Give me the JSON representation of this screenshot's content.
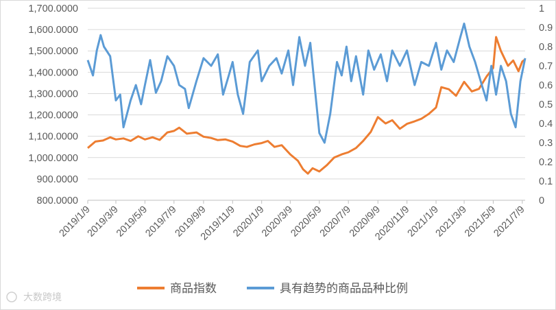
{
  "chart_data": {
    "type": "line",
    "title": "",
    "xlabel": "",
    "y_left": {
      "ticks": [
        "800.0000",
        "900.0000",
        "1,000.0000",
        "1,100.0000",
        "1,200.0000",
        "1,300.0000",
        "1,400.0000",
        "1,500.0000",
        "1,600.0000",
        "1,700.0000"
      ],
      "range": [
        800,
        1700
      ]
    },
    "y_right": {
      "ticks": [
        "0",
        "0.1",
        "0.2",
        "0.3",
        "0.4",
        "0.5",
        "0.6",
        "0.7",
        "0.8",
        "0.9",
        "1"
      ],
      "range": [
        0,
        1
      ]
    },
    "x_tick_labels": [
      "2019/1/9",
      "2019/3/9",
      "2019/5/9",
      "2019/7/9",
      "2019/9/9",
      "2019/11/9",
      "2020/1/9",
      "2020/3/9",
      "2020/5/9",
      "2020/7/9",
      "2020/9/9",
      "2020/11/9",
      "2021/1/9",
      "2021/3/9",
      "2021/5/9",
      "2021/7/9"
    ],
    "x_range": [
      "2019/1/9",
      "2021/7/15"
    ],
    "legend_position": "bottom",
    "series": [
      {
        "name": "商品指数",
        "axis": "left",
        "color": "#ED7D31",
        "points": [
          [
            "2019/1/9",
            1045
          ],
          [
            "2019/1/25",
            1075
          ],
          [
            "2019/2/10",
            1080
          ],
          [
            "2019/2/25",
            1095
          ],
          [
            "2019/3/9",
            1085
          ],
          [
            "2019/3/25",
            1090
          ],
          [
            "2019/4/9",
            1078
          ],
          [
            "2019/4/25",
            1100
          ],
          [
            "2019/5/9",
            1085
          ],
          [
            "2019/5/25",
            1095
          ],
          [
            "2019/6/9",
            1083
          ],
          [
            "2019/6/25",
            1118
          ],
          [
            "2019/7/9",
            1125
          ],
          [
            "2019/7/20",
            1140
          ],
          [
            "2019/8/5",
            1112
          ],
          [
            "2019/8/25",
            1118
          ],
          [
            "2019/9/9",
            1098
          ],
          [
            "2019/9/25",
            1092
          ],
          [
            "2019/10/9",
            1082
          ],
          [
            "2019/10/25",
            1085
          ],
          [
            "2019/11/9",
            1075
          ],
          [
            "2019/11/25",
            1055
          ],
          [
            "2019/12/9",
            1050
          ],
          [
            "2019/12/25",
            1062
          ],
          [
            "2020/1/9",
            1068
          ],
          [
            "2020/1/22",
            1078
          ],
          [
            "2020/2/5",
            1050
          ],
          [
            "2020/2/20",
            1058
          ],
          [
            "2020/3/9",
            1015
          ],
          [
            "2020/3/25",
            985
          ],
          [
            "2020/4/5",
            945
          ],
          [
            "2020/4/15",
            925
          ],
          [
            "2020/4/25",
            950
          ],
          [
            "2020/5/9",
            935
          ],
          [
            "2020/5/25",
            965
          ],
          [
            "2020/6/9",
            1000
          ],
          [
            "2020/6/25",
            1015
          ],
          [
            "2020/7/9",
            1025
          ],
          [
            "2020/7/25",
            1045
          ],
          [
            "2020/8/9",
            1078
          ],
          [
            "2020/8/25",
            1120
          ],
          [
            "2020/9/9",
            1190
          ],
          [
            "2020/9/25",
            1160
          ],
          [
            "2020/10/9",
            1175
          ],
          [
            "2020/10/25",
            1135
          ],
          [
            "2020/11/9",
            1158
          ],
          [
            "2020/11/25",
            1170
          ],
          [
            "2020/12/9",
            1182
          ],
          [
            "2020/12/25",
            1205
          ],
          [
            "2021/1/9",
            1235
          ],
          [
            "2021/1/20",
            1330
          ],
          [
            "2021/2/5",
            1320
          ],
          [
            "2021/2/20",
            1290
          ],
          [
            "2021/3/9",
            1355
          ],
          [
            "2021/3/25",
            1310
          ],
          [
            "2021/4/9",
            1322
          ],
          [
            "2021/4/25",
            1380
          ],
          [
            "2021/5/9",
            1420
          ],
          [
            "2021/5/15",
            1565
          ],
          [
            "2021/5/25",
            1500
          ],
          [
            "2021/6/9",
            1430
          ],
          [
            "2021/6/20",
            1455
          ],
          [
            "2021/7/1",
            1405
          ],
          [
            "2021/7/9",
            1450
          ],
          [
            "2021/7/15",
            1460
          ]
        ]
      },
      {
        "name": "具有趋势的商品品种比例",
        "axis": "right",
        "color": "#5B9BD5",
        "points": [
          [
            "2019/1/9",
            0.73
          ],
          [
            "2019/1/20",
            0.65
          ],
          [
            "2019/1/28",
            0.78
          ],
          [
            "2019/2/5",
            0.86
          ],
          [
            "2019/2/12",
            0.8
          ],
          [
            "2019/2/25",
            0.75
          ],
          [
            "2019/3/9",
            0.52
          ],
          [
            "2019/3/18",
            0.55
          ],
          [
            "2019/3/25",
            0.38
          ],
          [
            "2019/4/9",
            0.52
          ],
          [
            "2019/4/20",
            0.6
          ],
          [
            "2019/5/1",
            0.5
          ],
          [
            "2019/5/9",
            0.6
          ],
          [
            "2019/5/20",
            0.73
          ],
          [
            "2019/6/1",
            0.56
          ],
          [
            "2019/6/12",
            0.62
          ],
          [
            "2019/6/25",
            0.75
          ],
          [
            "2019/7/9",
            0.7
          ],
          [
            "2019/7/20",
            0.6
          ],
          [
            "2019/8/1",
            0.58
          ],
          [
            "2019/8/9",
            0.48
          ],
          [
            "2019/8/25",
            0.62
          ],
          [
            "2019/9/9",
            0.74
          ],
          [
            "2019/9/25",
            0.7
          ],
          [
            "2019/10/9",
            0.76
          ],
          [
            "2019/10/20",
            0.55
          ],
          [
            "2019/11/1",
            0.65
          ],
          [
            "2019/11/9",
            0.72
          ],
          [
            "2019/11/20",
            0.55
          ],
          [
            "2019/12/1",
            0.45
          ],
          [
            "2019/12/15",
            0.72
          ],
          [
            "2020/1/1",
            0.78
          ],
          [
            "2020/1/9",
            0.62
          ],
          [
            "2020/1/25",
            0.7
          ],
          [
            "2020/2/9",
            0.74
          ],
          [
            "2020/2/20",
            0.66
          ],
          [
            "2020/3/5",
            0.78
          ],
          [
            "2020/3/15",
            0.6
          ],
          [
            "2020/3/28",
            0.85
          ],
          [
            "2020/4/9",
            0.7
          ],
          [
            "2020/4/20",
            0.82
          ],
          [
            "2020/5/1",
            0.55
          ],
          [
            "2020/5/9",
            0.35
          ],
          [
            "2020/5/20",
            0.3
          ],
          [
            "2020/6/1",
            0.45
          ],
          [
            "2020/6/15",
            0.72
          ],
          [
            "2020/6/25",
            0.65
          ],
          [
            "2020/7/5",
            0.8
          ],
          [
            "2020/7/15",
            0.62
          ],
          [
            "2020/7/25",
            0.75
          ],
          [
            "2020/8/9",
            0.55
          ],
          [
            "2020/8/20",
            0.78
          ],
          [
            "2020/9/1",
            0.68
          ],
          [
            "2020/9/15",
            0.76
          ],
          [
            "2020/9/28",
            0.62
          ],
          [
            "2020/10/9",
            0.78
          ],
          [
            "2020/10/25",
            0.7
          ],
          [
            "2020/11/9",
            0.78
          ],
          [
            "2020/11/25",
            0.6
          ],
          [
            "2020/12/9",
            0.72
          ],
          [
            "2020/12/25",
            0.7
          ],
          [
            "2021/1/9",
            0.82
          ],
          [
            "2021/1/20",
            0.68
          ],
          [
            "2021/2/1",
            0.78
          ],
          [
            "2021/2/15",
            0.72
          ],
          [
            "2021/3/1",
            0.85
          ],
          [
            "2021/3/9",
            0.92
          ],
          [
            "2021/3/20",
            0.8
          ],
          [
            "2021/4/1",
            0.72
          ],
          [
            "2021/4/15",
            0.6
          ],
          [
            "2021/4/25",
            0.52
          ],
          [
            "2021/5/5",
            0.7
          ],
          [
            "2021/5/15",
            0.55
          ],
          [
            "2021/5/25",
            0.7
          ],
          [
            "2021/6/5",
            0.62
          ],
          [
            "2021/6/15",
            0.45
          ],
          [
            "2021/6/25",
            0.38
          ],
          [
            "2021/7/5",
            0.62
          ],
          [
            "2021/7/15",
            0.74
          ]
        ]
      }
    ]
  },
  "watermark": {
    "text": "大数跨境"
  },
  "colors": {
    "orange": "#ED7D31",
    "blue": "#5B9BD5",
    "grid": "#d9d9d9",
    "axis_text": "#595959"
  }
}
